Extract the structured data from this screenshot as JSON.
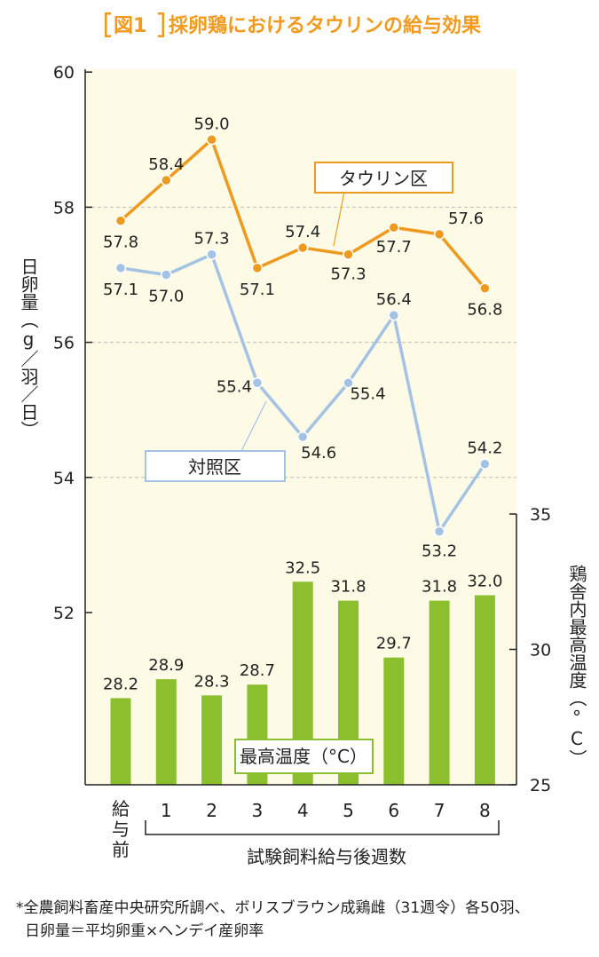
{
  "title": {
    "label": "図1",
    "text": "採卵鶏におけるタウリンの給与効果"
  },
  "chart_data": {
    "type": "line+bar",
    "categories": [
      "給与前",
      "1",
      "2",
      "3",
      "4",
      "5",
      "6",
      "7",
      "8"
    ],
    "xlabel": "試験飼料給与後週数",
    "ylabel_left": "日卵量（g／羽／日）",
    "ylabel_right": "鶏舎内最高温度（°C）",
    "left_axis": {
      "ylim": [
        52,
        60
      ],
      "ticks": [
        "52",
        "54",
        "56",
        "58",
        "60"
      ]
    },
    "right_axis": {
      "ylim": [
        25,
        35
      ],
      "ticks": [
        "25",
        "30",
        "35"
      ]
    },
    "grid": "dashed horizontal at 54, 56, 58",
    "series": [
      {
        "name": "タウリン区",
        "kind": "line",
        "axis": "left",
        "color": "#ee9a1e",
        "values": [
          57.8,
          58.4,
          59.0,
          57.1,
          57.4,
          57.3,
          57.7,
          57.6,
          56.8
        ],
        "labels": [
          "57.8",
          "58.4",
          "59.0",
          "57.1",
          "57.4",
          "57.3",
          "57.7",
          "57.6",
          "56.8"
        ]
      },
      {
        "name": "対照区",
        "kind": "line",
        "axis": "left",
        "color": "#a4c2e4",
        "values": [
          57.1,
          57.0,
          57.3,
          55.4,
          54.6,
          55.4,
          56.4,
          53.2,
          54.2
        ],
        "labels": [
          "57.1",
          "57.0",
          "57.3",
          "55.4",
          "54.6",
          "55.4",
          "56.4",
          "53.2",
          "54.2"
        ]
      },
      {
        "name": "最高温度（°C）",
        "kind": "bar",
        "axis": "right",
        "color": "#8cbf2e",
        "values": [
          28.2,
          28.9,
          28.3,
          28.7,
          32.5,
          31.8,
          29.7,
          31.8,
          32.0
        ],
        "labels": [
          "28.2",
          "28.9",
          "28.3",
          "28.7",
          "32.5",
          "31.8",
          "29.7",
          "31.8",
          "32.0"
        ]
      }
    ]
  },
  "footnote": {
    "line1": "*全農飼料畜産中央研究所調べ、ボリスブラウン成鶏雌（31週令）各50羽、",
    "line2": "日卵量＝平均卵重×ヘンデイ産卵率"
  },
  "colors": {
    "plot_background": "#fdfbe6",
    "taurine": "#ee9a1e",
    "control": "#a4c2e4",
    "bar": "#8cbf2e",
    "title": "#f29a1e"
  }
}
